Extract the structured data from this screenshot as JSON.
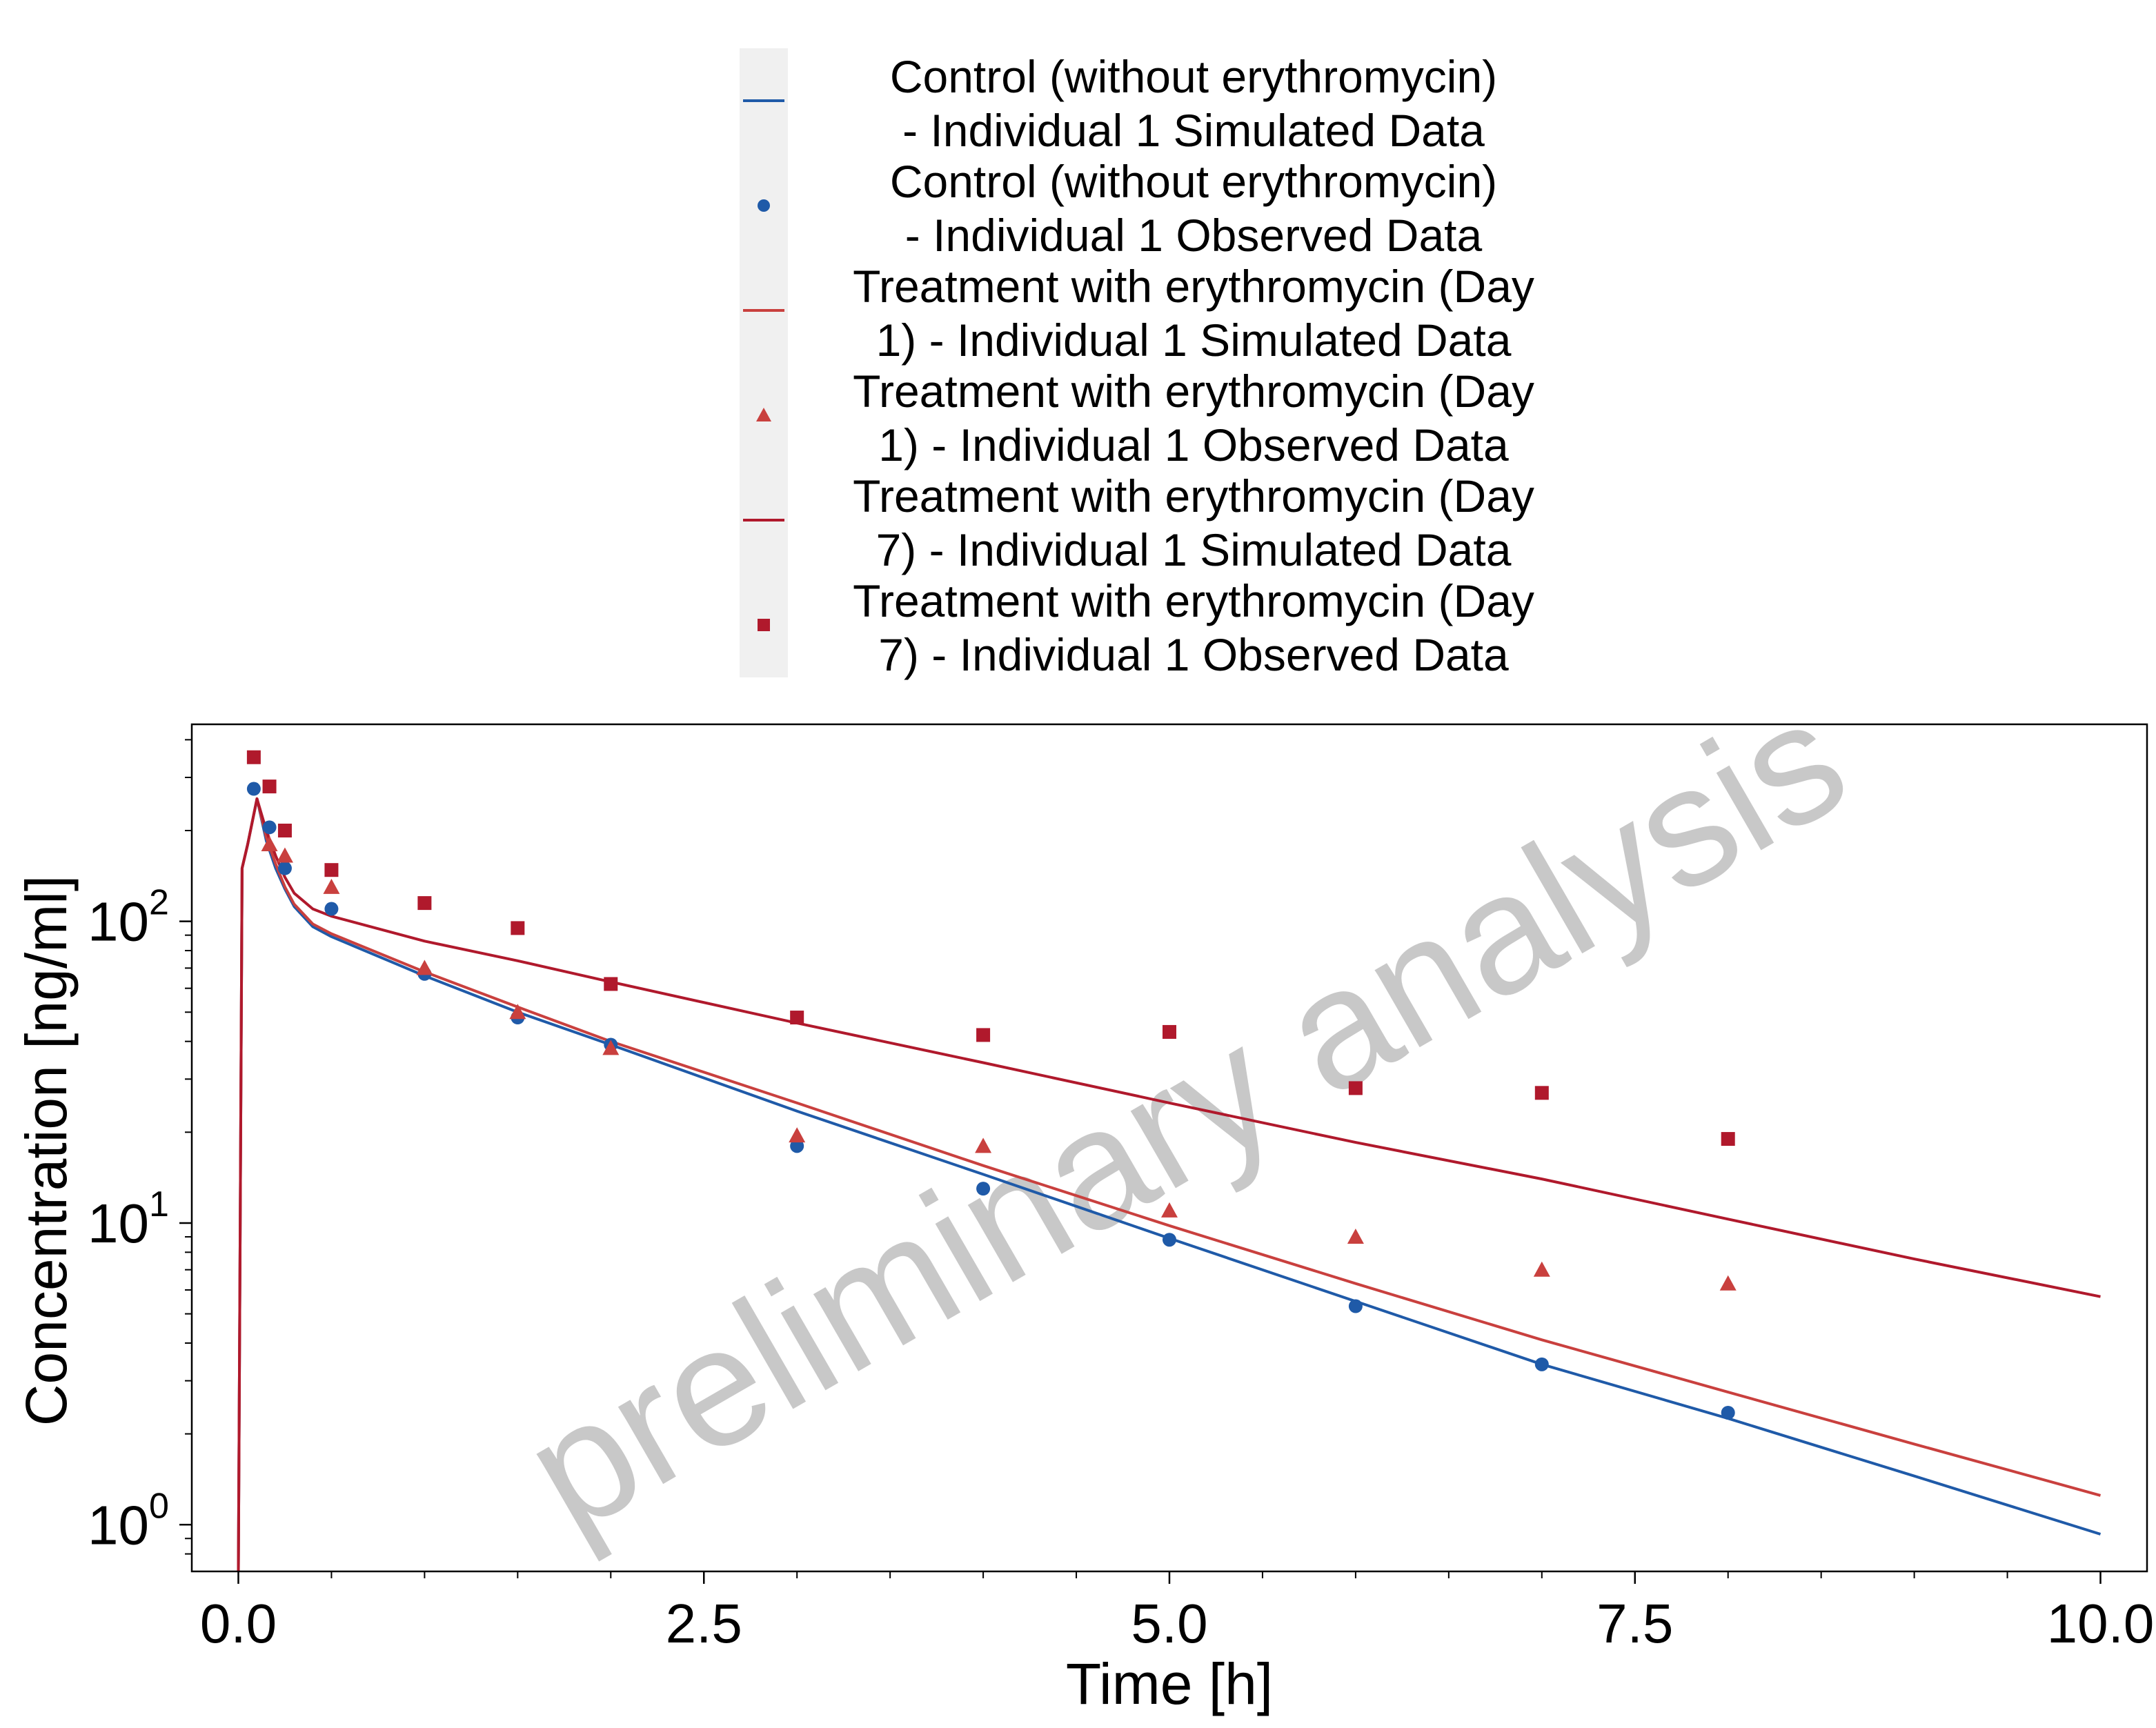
{
  "chart_data": {
    "type": "line",
    "title": "",
    "xlabel": "Time [h]",
    "ylabel": "Concentration [ng/ml]",
    "xlim": [
      -0.25,
      10.25
    ],
    "ylim": [
      0.7,
      450
    ],
    "yscale": "log",
    "x_ticks": [
      0.0,
      2.5,
      5.0,
      7.5,
      10.0
    ],
    "x_tick_labels": [
      "0.0",
      "2.5",
      "5.0",
      "7.5",
      "10.0"
    ],
    "y_ticks": [
      1,
      10,
      100
    ],
    "y_tick_labels": [
      {
        "base": "10",
        "exp": "0"
      },
      {
        "base": "10",
        "exp": "1"
      },
      {
        "base": "10",
        "exp": "2"
      }
    ],
    "grid": false,
    "legend_position": "top",
    "watermark": "preliminary analysis",
    "series": [
      {
        "name": "Control (without erythromycin) - Individual 1 Simulated Data",
        "legend_lines": [
          "Control (without erythromycin)",
          "- Individual 1 Simulated Data"
        ],
        "kind": "line",
        "color": "#1f5aa8",
        "x": [
          0.0,
          0.02,
          0.05,
          0.1,
          0.15,
          0.2,
          0.25,
          0.3,
          0.4,
          0.5,
          1,
          1.5,
          2,
          3,
          4,
          5,
          6,
          7,
          8,
          9,
          10
        ],
        "y": [
          0.7,
          150,
          180,
          255,
          185,
          150,
          128,
          112,
          96,
          89,
          66,
          50,
          39,
          23.5,
          14.5,
          8.9,
          5.5,
          3.4,
          2.25,
          1.45,
          0.93
        ]
      },
      {
        "name": "Control (without erythromycin) - Individual 1 Observed Data",
        "legend_lines": [
          "Control (without erythromycin)",
          "- Individual 1 Observed Data"
        ],
        "kind": "circle",
        "color": "#1f5aa8",
        "x": [
          0.083,
          0.167,
          0.25,
          0.5,
          1,
          1.5,
          2,
          3,
          4,
          5,
          6,
          7,
          8
        ],
        "y": [
          275,
          205,
          150,
          110,
          67,
          48,
          39,
          18,
          13,
          8.8,
          5.3,
          3.4,
          2.35
        ]
      },
      {
        "name": "Treatment with erythromycin (Day 1) - Individual 1 Simulated Data",
        "legend_lines": [
          "Treatment with erythromycin (Day",
          "1) - Individual 1 Simulated Data"
        ],
        "kind": "line",
        "color": "#c9403e",
        "x": [
          0.0,
          0.02,
          0.05,
          0.1,
          0.15,
          0.2,
          0.25,
          0.3,
          0.4,
          0.5,
          1,
          1.5,
          2,
          3,
          4,
          5,
          6,
          7,
          8,
          9,
          10
        ],
        "y": [
          0.7,
          150,
          180,
          255,
          190,
          155,
          130,
          114,
          98,
          91,
          68,
          52,
          40,
          25,
          15.5,
          9.8,
          6.3,
          4.1,
          2.75,
          1.85,
          1.25
        ]
      },
      {
        "name": "Treatment with erythromycin (Day 1) - Individual 1 Observed Data",
        "legend_lines": [
          "Treatment with erythromycin (Day",
          "1) - Individual 1 Observed Data"
        ],
        "kind": "triangle",
        "color": "#c9403e",
        "x": [
          0.167,
          0.25,
          0.5,
          1,
          1.5,
          2,
          3,
          4,
          5,
          6,
          7,
          8
        ],
        "y": [
          180,
          165,
          130,
          70,
          50,
          38,
          19.5,
          18,
          11,
          9,
          7,
          6.3
        ]
      },
      {
        "name": "Treatment with erythromycin (Day 7) - Individual 1 Simulated Data",
        "legend_lines": [
          "Treatment with erythromycin (Day",
          "7) - Individual 1 Simulated Data"
        ],
        "kind": "line",
        "color": "#b0192c",
        "x": [
          0.0,
          0.02,
          0.05,
          0.1,
          0.15,
          0.2,
          0.25,
          0.3,
          0.4,
          0.5,
          1,
          1.5,
          2,
          3,
          4,
          5,
          6,
          7,
          8,
          9,
          10
        ],
        "y": [
          0.7,
          150,
          180,
          255,
          200,
          165,
          140,
          124,
          110,
          104,
          86,
          74,
          63,
          46,
          34,
          25,
          18.5,
          14,
          10.3,
          7.6,
          5.7
        ]
      },
      {
        "name": "Treatment with erythromycin (Day 7) - Individual 1 Observed Data",
        "legend_lines": [
          "Treatment with erythromycin (Day",
          "7) - Individual 1 Observed Data"
        ],
        "kind": "square",
        "color": "#b0192c",
        "x": [
          0.083,
          0.167,
          0.25,
          0.5,
          1,
          1.5,
          2,
          3,
          4,
          5,
          6,
          7,
          8
        ],
        "y": [
          350,
          280,
          200,
          148,
          115,
          95,
          62,
          48,
          42,
          43,
          28,
          27,
          19
        ]
      }
    ]
  }
}
